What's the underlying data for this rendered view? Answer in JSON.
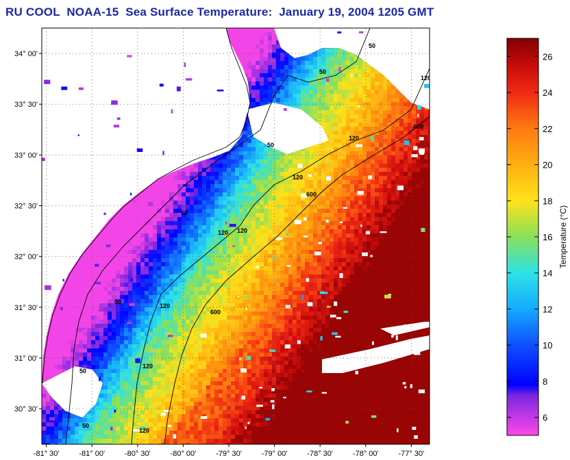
{
  "title": "RU COOL  NOAA-15  Sea Surface Temperature:  January 19, 2004 1205 GMT",
  "colors": {
    "title": "#1a27a8",
    "land": "#ffffff",
    "cold": "#ff33ee",
    "blue": "#1b39ff",
    "cyan": "#2ce4ee",
    "yellow": "#ffe21a",
    "orange": "#ff8a10",
    "red": "#ef2a14",
    "darkred": "#8a0000"
  },
  "map": {
    "lat_ticks": [
      "34° 00'",
      "33° 30'",
      "33° 00'",
      "32° 30'",
      "32° 00'",
      "31° 30'",
      "31° 00'",
      "30° 30'"
    ],
    "lon_ticks": [
      "-81° 30'",
      "-81° 00'",
      "-80° 30'",
      "-80° 00'",
      "-79° 30'",
      "-79° 00'",
      "-78° 30'",
      "-78° 00'",
      "-77° 30'"
    ],
    "lat_range": [
      30.15,
      34.25
    ],
    "lon_range": [
      -81.55,
      -77.3
    ],
    "grid": "dotted",
    "contour_labels": [
      "50",
      "50",
      "120",
      "600",
      "120",
      "50",
      "120",
      "120",
      "600",
      "50",
      "120",
      "600",
      "50",
      "120",
      "120",
      "50",
      "50",
      "120"
    ]
  },
  "colorbar": {
    "title": "Temperature (°C)",
    "range": [
      5,
      27
    ],
    "tick_values": [
      6,
      8,
      10,
      12,
      14,
      16,
      18,
      20,
      22,
      24,
      26
    ],
    "tick_labels": [
      "6",
      "8",
      "10",
      "12",
      "14",
      "16",
      "18",
      "20",
      "22",
      "24",
      "26"
    ],
    "stops": [
      {
        "value": 5,
        "color": "#ff48e8"
      },
      {
        "value": 7.2,
        "color": "#7a28e0"
      },
      {
        "value": 7.8,
        "color": "#0000ff"
      },
      {
        "value": 10,
        "color": "#1050ff"
      },
      {
        "value": 12,
        "color": "#15aaff"
      },
      {
        "value": 14,
        "color": "#2de2e6"
      },
      {
        "value": 16,
        "color": "#8ae05a"
      },
      {
        "value": 18,
        "color": "#ffe21a"
      },
      {
        "value": 20,
        "color": "#ffb010"
      },
      {
        "value": 22,
        "color": "#ff7a10"
      },
      {
        "value": 24,
        "color": "#f02a14"
      },
      {
        "value": 25.5,
        "color": "#c80c0c"
      },
      {
        "value": 27,
        "color": "#820000"
      }
    ]
  }
}
